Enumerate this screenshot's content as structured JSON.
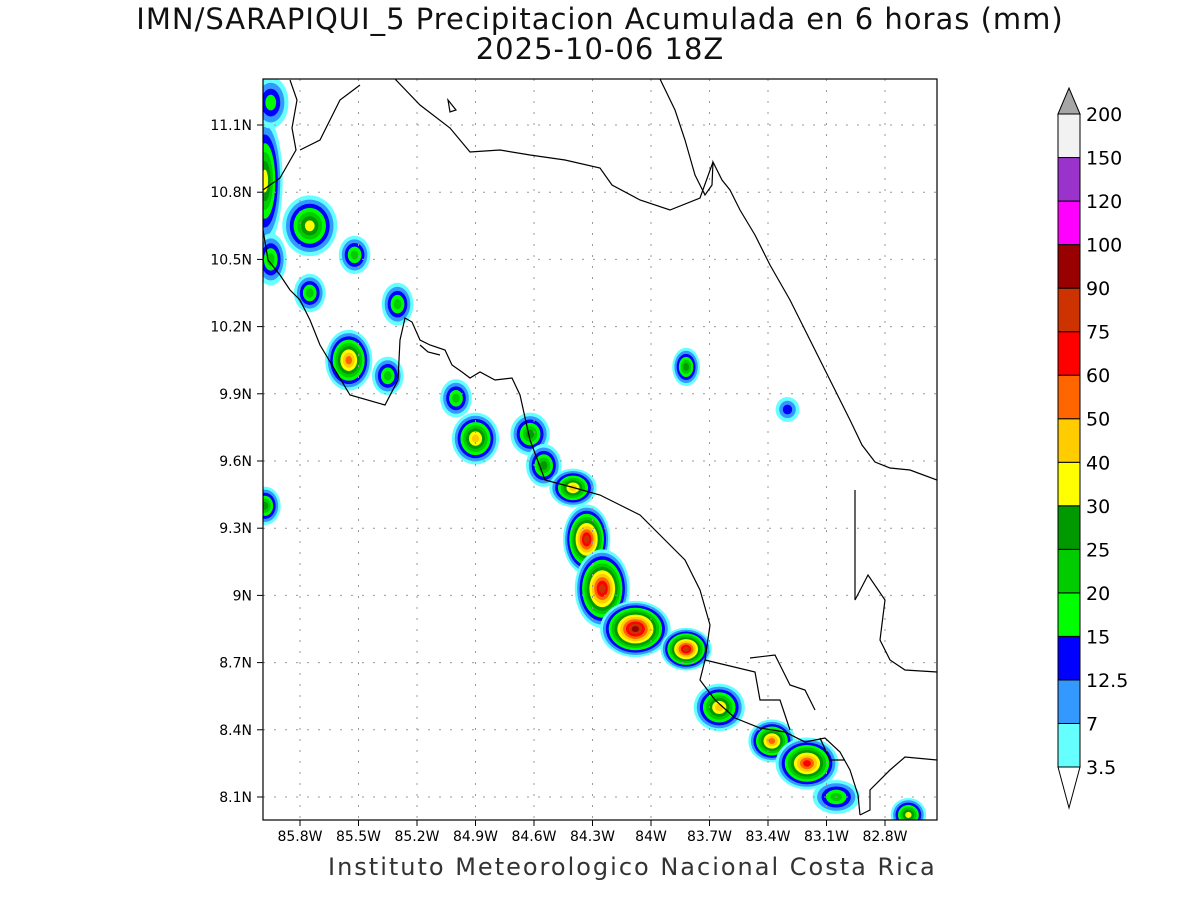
{
  "title": "IMN/SARAPIQUI_5 Precipitacion Acumulada en 6 horas (mm)",
  "subtitle": "2025-10-06 18Z",
  "footer": "Instituto Meteorologico Nacional Costa Rica",
  "chart_data": {
    "type": "heatmap",
    "title": "IMN/SARAPIQUI_5 Precipitacion Acumulada en 6 horas (mm)",
    "subtitle": "2025-10-06 18Z",
    "lon_range": [
      -86.0,
      -82.5
    ],
    "lat_range": [
      8.0,
      11.3
    ],
    "x_ticks": [
      "85.8W",
      "85.5W",
      "85.2W",
      "84.9W",
      "84.6W",
      "84.3W",
      "84W",
      "83.7W",
      "83.4W",
      "83.1W",
      "82.8W"
    ],
    "x_tick_values": [
      -85.8,
      -85.5,
      -85.2,
      -84.9,
      -84.6,
      -84.3,
      -84.0,
      -83.7,
      -83.4,
      -83.1,
      -82.8
    ],
    "y_ticks": [
      "11.1N",
      "10.8N",
      "10.5N",
      "10.2N",
      "9.9N",
      "9.6N",
      "9.3N",
      "9N",
      "8.7N",
      "8.4N",
      "8.1N"
    ],
    "y_tick_values": [
      11.1,
      10.8,
      10.5,
      10.2,
      9.9,
      9.6,
      9.3,
      9.0,
      8.7,
      8.4,
      8.1
    ],
    "grid": true,
    "colorbar": {
      "levels": [
        "3.5",
        "7",
        "12.5",
        "15",
        "20",
        "25",
        "30",
        "40",
        "50",
        "60",
        "75",
        "90",
        "100",
        "120",
        "150",
        "200"
      ],
      "level_values": [
        3.5,
        7,
        12.5,
        15,
        20,
        25,
        30,
        40,
        50,
        60,
        75,
        90,
        100,
        120,
        150,
        200
      ],
      "colors": [
        "#66ffff",
        "#3399ff",
        "#0000ff",
        "#00ff00",
        "#00cc00",
        "#009900",
        "#ffff00",
        "#ffcc00",
        "#ff6600",
        "#ff0000",
        "#cc3300",
        "#990000",
        "#ff00ff",
        "#9933cc",
        "#f2f2f2"
      ],
      "over_color": "#a6a6a6",
      "under_color": "#ffffff"
    },
    "cells": [
      {
        "lon": -85.98,
        "lat": 10.85,
        "rlon": 0.05,
        "rlat": 0.25,
        "peak": 35
      },
      {
        "lon": -85.95,
        "lat": 11.2,
        "rlon": 0.05,
        "rlat": 0.08,
        "peak": 15
      },
      {
        "lon": -85.75,
        "lat": 10.65,
        "rlon": 0.1,
        "rlat": 0.1,
        "peak": 30
      },
      {
        "lon": -85.95,
        "lat": 10.5,
        "rlon": 0.04,
        "rlat": 0.08,
        "peak": 20
      },
      {
        "lon": -85.75,
        "lat": 10.35,
        "rlon": 0.04,
        "rlat": 0.05,
        "peak": 20
      },
      {
        "lon": -85.52,
        "lat": 10.52,
        "rlon": 0.04,
        "rlat": 0.05,
        "peak": 20
      },
      {
        "lon": -85.55,
        "lat": 10.05,
        "rlon": 0.08,
        "rlat": 0.1,
        "peak": 50
      },
      {
        "lon": -85.3,
        "lat": 10.3,
        "rlon": 0.04,
        "rlat": 0.06,
        "peak": 20
      },
      {
        "lon": -85.35,
        "lat": 9.98,
        "rlon": 0.04,
        "rlat": 0.05,
        "peak": 20
      },
      {
        "lon": -85.0,
        "lat": 9.88,
        "rlon": 0.04,
        "rlat": 0.05,
        "peak": 20
      },
      {
        "lon": -84.9,
        "lat": 9.7,
        "rlon": 0.08,
        "rlat": 0.08,
        "peak": 40
      },
      {
        "lon": -84.62,
        "lat": 9.72,
        "rlon": 0.06,
        "rlat": 0.06,
        "peak": 25
      },
      {
        "lon": -84.55,
        "lat": 9.58,
        "rlon": 0.05,
        "rlat": 0.06,
        "peak": 25
      },
      {
        "lon": -84.4,
        "lat": 9.48,
        "rlon": 0.08,
        "rlat": 0.05,
        "peak": 40
      },
      {
        "lon": -84.33,
        "lat": 9.25,
        "rlon": 0.08,
        "rlat": 0.12,
        "peak": 75
      },
      {
        "lon": -84.25,
        "lat": 9.03,
        "rlon": 0.1,
        "rlat": 0.14,
        "peak": 75
      },
      {
        "lon": -84.08,
        "lat": 8.85,
        "rlon": 0.14,
        "rlat": 0.09,
        "peak": 90
      },
      {
        "lon": -83.82,
        "lat": 8.76,
        "rlon": 0.09,
        "rlat": 0.06,
        "peak": 75
      },
      {
        "lon": -83.65,
        "lat": 8.5,
        "rlon": 0.09,
        "rlat": 0.07,
        "peak": 40
      },
      {
        "lon": -83.38,
        "lat": 8.35,
        "rlon": 0.08,
        "rlat": 0.06,
        "peak": 50
      },
      {
        "lon": -83.2,
        "lat": 8.25,
        "rlon": 0.12,
        "rlat": 0.08,
        "peak": 60
      },
      {
        "lon": -83.05,
        "lat": 8.1,
        "rlon": 0.08,
        "rlat": 0.04,
        "peak": 20
      },
      {
        "lon": -85.98,
        "lat": 9.4,
        "rlon": 0.04,
        "rlat": 0.05,
        "peak": 25
      },
      {
        "lon": -83.82,
        "lat": 10.02,
        "rlon": 0.03,
        "rlat": 0.05,
        "peak": 25
      },
      {
        "lon": -83.3,
        "lat": 9.83,
        "rlon": 0.02,
        "rlat": 0.02,
        "peak": 12.5
      },
      {
        "lon": -82.68,
        "lat": 8.02,
        "rlon": 0.05,
        "rlat": 0.04,
        "peak": 30
      }
    ]
  }
}
